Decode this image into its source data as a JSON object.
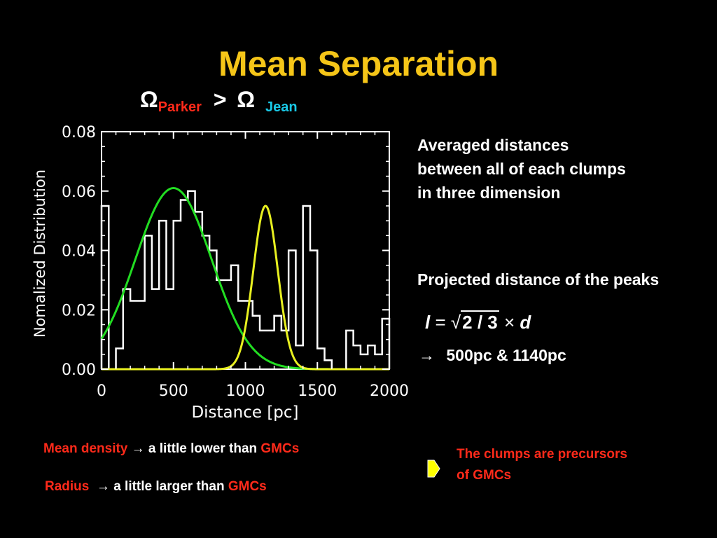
{
  "slide": {
    "title": "Mean Separation",
    "omega": {
      "symbol_left": "Ω",
      "sub_left": "Parker",
      "operator": ">",
      "symbol_right": "Ω",
      "sub_right": "Jean"
    },
    "right_text": {
      "line1": "Averaged distances",
      "line2": "between all of each clumps",
      "line3": "in three dimension",
      "projected": "Projected distance of the peaks",
      "formula": {
        "l": "l",
        "eq": "=",
        "radicand": "2 / 3",
        "times": "×",
        "d": "d"
      },
      "result_arrow": "→",
      "result": "500pc & 1140pc"
    },
    "bottom": {
      "density_label": "Mean density",
      "density_text": " → a little lower than ",
      "density_gmc": "GMCs",
      "radius_label": "Radius",
      "radius_text": "  → a little larger than ",
      "radius_gmc": "GMCs",
      "conclusion_line1": "The clumps are precursors",
      "conclusion_line2": "of GMCs"
    },
    "colors": {
      "title": "#f5c518",
      "red": "#ff2a1a",
      "cyan": "#19c8e6",
      "green_fit": "#22dd22",
      "yellow_fit": "#e8f020",
      "arrow_icon": "#ffff00"
    }
  },
  "chart_data": {
    "type": "line",
    "xlabel": "Distance [pc]",
    "ylabel": "Nomalized Distribution",
    "xlim": [
      0,
      2000
    ],
    "ylim": [
      0,
      0.08
    ],
    "xticks": [
      "0",
      "500",
      "1000",
      "1500",
      "2000"
    ],
    "yticks": [
      "0.00",
      "0.02",
      "0.04",
      "0.06",
      "0.08"
    ],
    "histogram": {
      "bin_width": 50,
      "x_start": 0,
      "values": [
        0.055,
        0.0,
        0.007,
        0.027,
        0.023,
        0.023,
        0.045,
        0.027,
        0.05,
        0.027,
        0.05,
        0.057,
        0.06,
        0.053,
        0.045,
        0.04,
        0.03,
        0.03,
        0.035,
        0.023,
        0.023,
        0.018,
        0.013,
        0.013,
        0.018,
        0.013,
        0.04,
        0.008,
        0.055,
        0.04,
        0.007,
        0.003,
        0.0,
        0.0,
        0.013,
        0.008,
        0.005,
        0.008,
        0.005,
        0.017,
        0.0
      ]
    },
    "series": [
      {
        "name": "",
        "type": "gaussian",
        "amplitude": 0.061,
        "center": 500,
        "sigma": 265,
        "color": "#22dd22"
      },
      {
        "name": "",
        "type": "gaussian",
        "amplitude": 0.055,
        "center": 1140,
        "sigma": 85,
        "color": "#e8f020"
      }
    ],
    "grid": false
  }
}
